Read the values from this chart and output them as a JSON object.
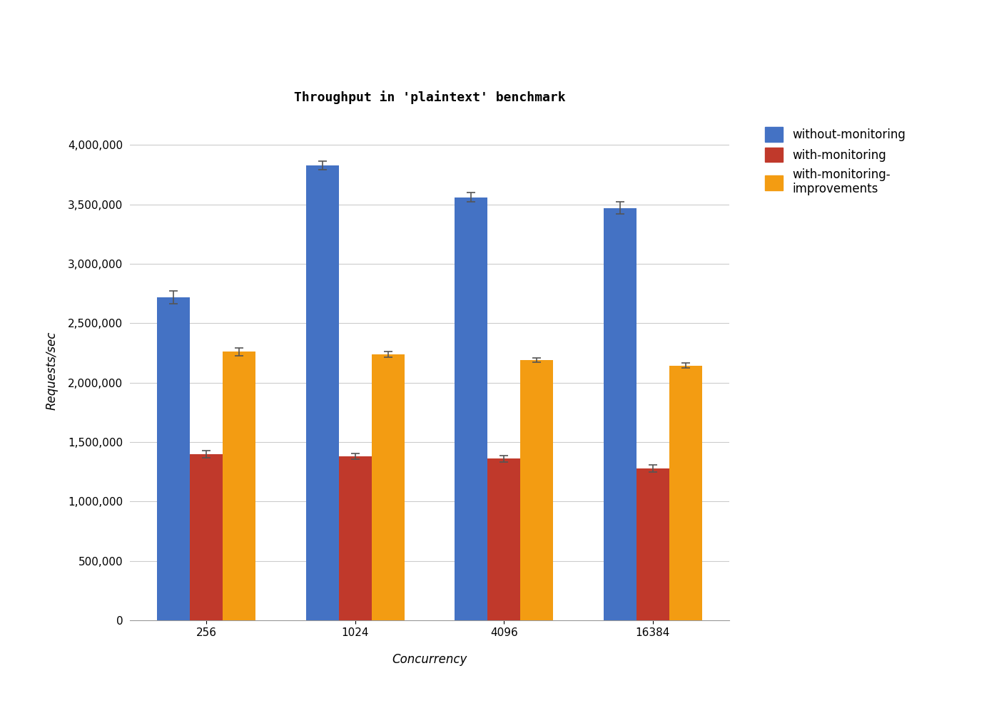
{
  "title": "Throughput in 'plaintext' benchmark",
  "xlabel": "Concurrency",
  "ylabel": "Requests/sec",
  "categories": [
    256,
    1024,
    4096,
    16384
  ],
  "series": [
    {
      "label": "without-monitoring",
      "color": "#4472C4",
      "values": [
        2720000,
        3830000,
        3560000,
        3470000
      ],
      "errors": [
        55000,
        35000,
        40000,
        50000
      ]
    },
    {
      "label": "with-monitoring",
      "color": "#C0392B",
      "values": [
        1400000,
        1380000,
        1360000,
        1280000
      ],
      "errors": [
        30000,
        25000,
        25000,
        30000
      ]
    },
    {
      "label": "with-monitoring-\nimprovements",
      "color": "#F39C12",
      "values": [
        2260000,
        2240000,
        2190000,
        2145000
      ],
      "errors": [
        35000,
        25000,
        20000,
        20000
      ]
    }
  ],
  "ylim": [
    0,
    4200000
  ],
  "yticks": [
    0,
    500000,
    1000000,
    1500000,
    2000000,
    2500000,
    3000000,
    3500000,
    4000000
  ],
  "background_color": "#FFFFFF",
  "grid_color": "#CCCCCC",
  "title_fontsize": 13,
  "axis_fontsize": 12,
  "tick_fontsize": 11,
  "legend_fontsize": 12,
  "bar_width": 0.22
}
